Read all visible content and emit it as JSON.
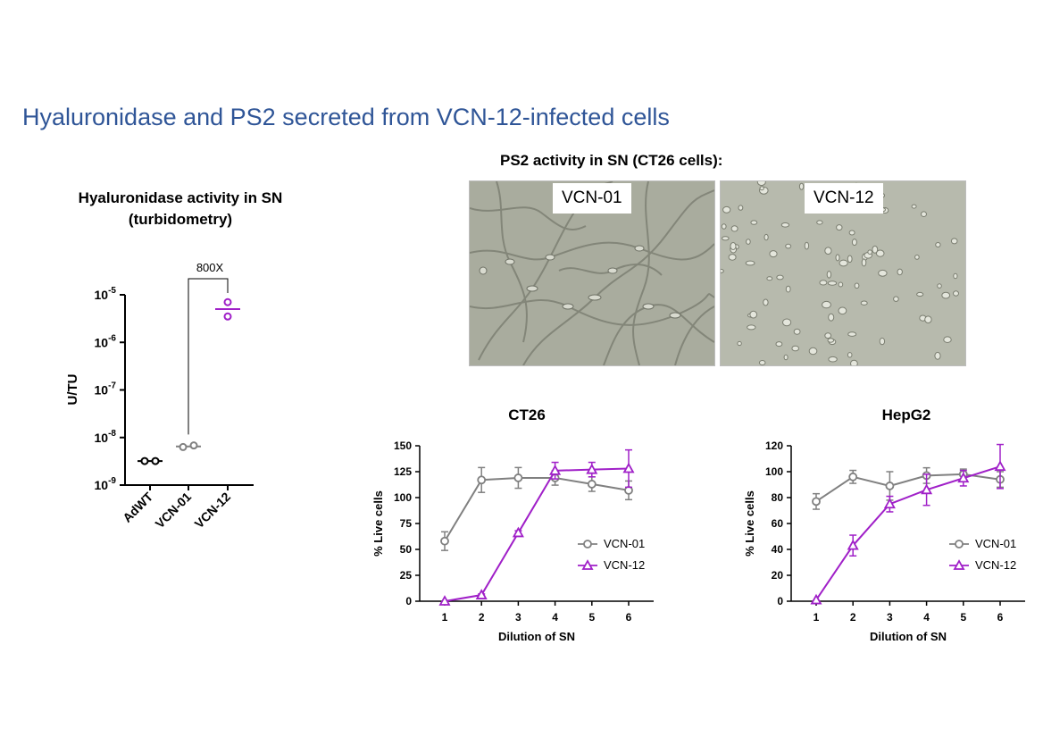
{
  "slide": {
    "title": "Hyaluronidase and PS2 secreted from VCN-12-infected cells"
  },
  "colors": {
    "vcn01": "#808080",
    "vcn12": "#a020c8",
    "adwt": "#000000",
    "title": "#2f5597"
  },
  "micrographs": {
    "title": "PS2 activity in SN  (CT26 cells):",
    "left_label": "VCN-01",
    "right_label": "VCN-12"
  },
  "chart_data": [
    {
      "type": "scatter",
      "title_line1": "Hyaluronidase activity in SN",
      "title_line2": "(turbidometry)",
      "ylabel": "U/TU",
      "yscale": "log",
      "ylim": [
        1e-09,
        1e-05
      ],
      "ytick_labels": [
        {
          "base": "10",
          "exp": "-5",
          "value": 1e-05
        },
        {
          "base": "10",
          "exp": "-6",
          "value": 1e-06
        },
        {
          "base": "10",
          "exp": "-7",
          "value": 1e-07
        },
        {
          "base": "10",
          "exp": "-8",
          "value": 1e-08
        },
        {
          "base": "10",
          "exp": "-9",
          "value": 1e-09
        }
      ],
      "categories": [
        "AdWT",
        "VCN-01",
        "VCN-12"
      ],
      "points": [
        {
          "category": "AdWT",
          "values": [
            3.2e-09,
            3.2e-09
          ],
          "mean": 3.2e-09
        },
        {
          "category": "VCN-01",
          "values": [
            6.3e-09,
            6.8e-09
          ],
          "mean": 6.5e-09
        },
        {
          "category": "VCN-12",
          "values": [
            7e-06,
            3.5e-06
          ],
          "mean": 5e-06
        }
      ],
      "annotation": {
        "text": "800X",
        "from": "VCN-01",
        "to": "VCN-12"
      }
    },
    {
      "type": "line",
      "title": "CT26",
      "xlabel": "Dilution of SN",
      "ylabel": "% Live cells",
      "x": [
        1,
        2,
        3,
        4,
        5,
        6
      ],
      "ylim": [
        0,
        150
      ],
      "yticks": [
        0,
        25,
        50,
        75,
        100,
        125,
        150
      ],
      "legend_position": "right",
      "series": [
        {
          "name": "VCN-01",
          "marker": "circle",
          "values": [
            58,
            117,
            119,
            119,
            113,
            107
          ],
          "errors": [
            9,
            12,
            10,
            7,
            7,
            9
          ]
        },
        {
          "name": "VCN-12",
          "marker": "triangle",
          "values": [
            0,
            6,
            66,
            126,
            127,
            128
          ],
          "errors": [
            0,
            1,
            2,
            8,
            7,
            18
          ]
        }
      ]
    },
    {
      "type": "line",
      "title": "HepG2",
      "xlabel": "Dilution of SN",
      "ylabel": "% Live cells",
      "x": [
        1,
        2,
        3,
        4,
        5,
        6
      ],
      "ylim": [
        0,
        120
      ],
      "yticks": [
        0,
        20,
        40,
        60,
        80,
        100,
        120
      ],
      "legend_position": "right",
      "series": [
        {
          "name": "VCN-01",
          "marker": "circle",
          "values": [
            77,
            96,
            89,
            97,
            98,
            94
          ],
          "errors": [
            6,
            5,
            11,
            6,
            4,
            6
          ]
        },
        {
          "name": "VCN-12",
          "marker": "triangle",
          "values": [
            1,
            43,
            75,
            86,
            95,
            104
          ],
          "errors": [
            0,
            8,
            6,
            12,
            6,
            17
          ]
        }
      ]
    }
  ]
}
